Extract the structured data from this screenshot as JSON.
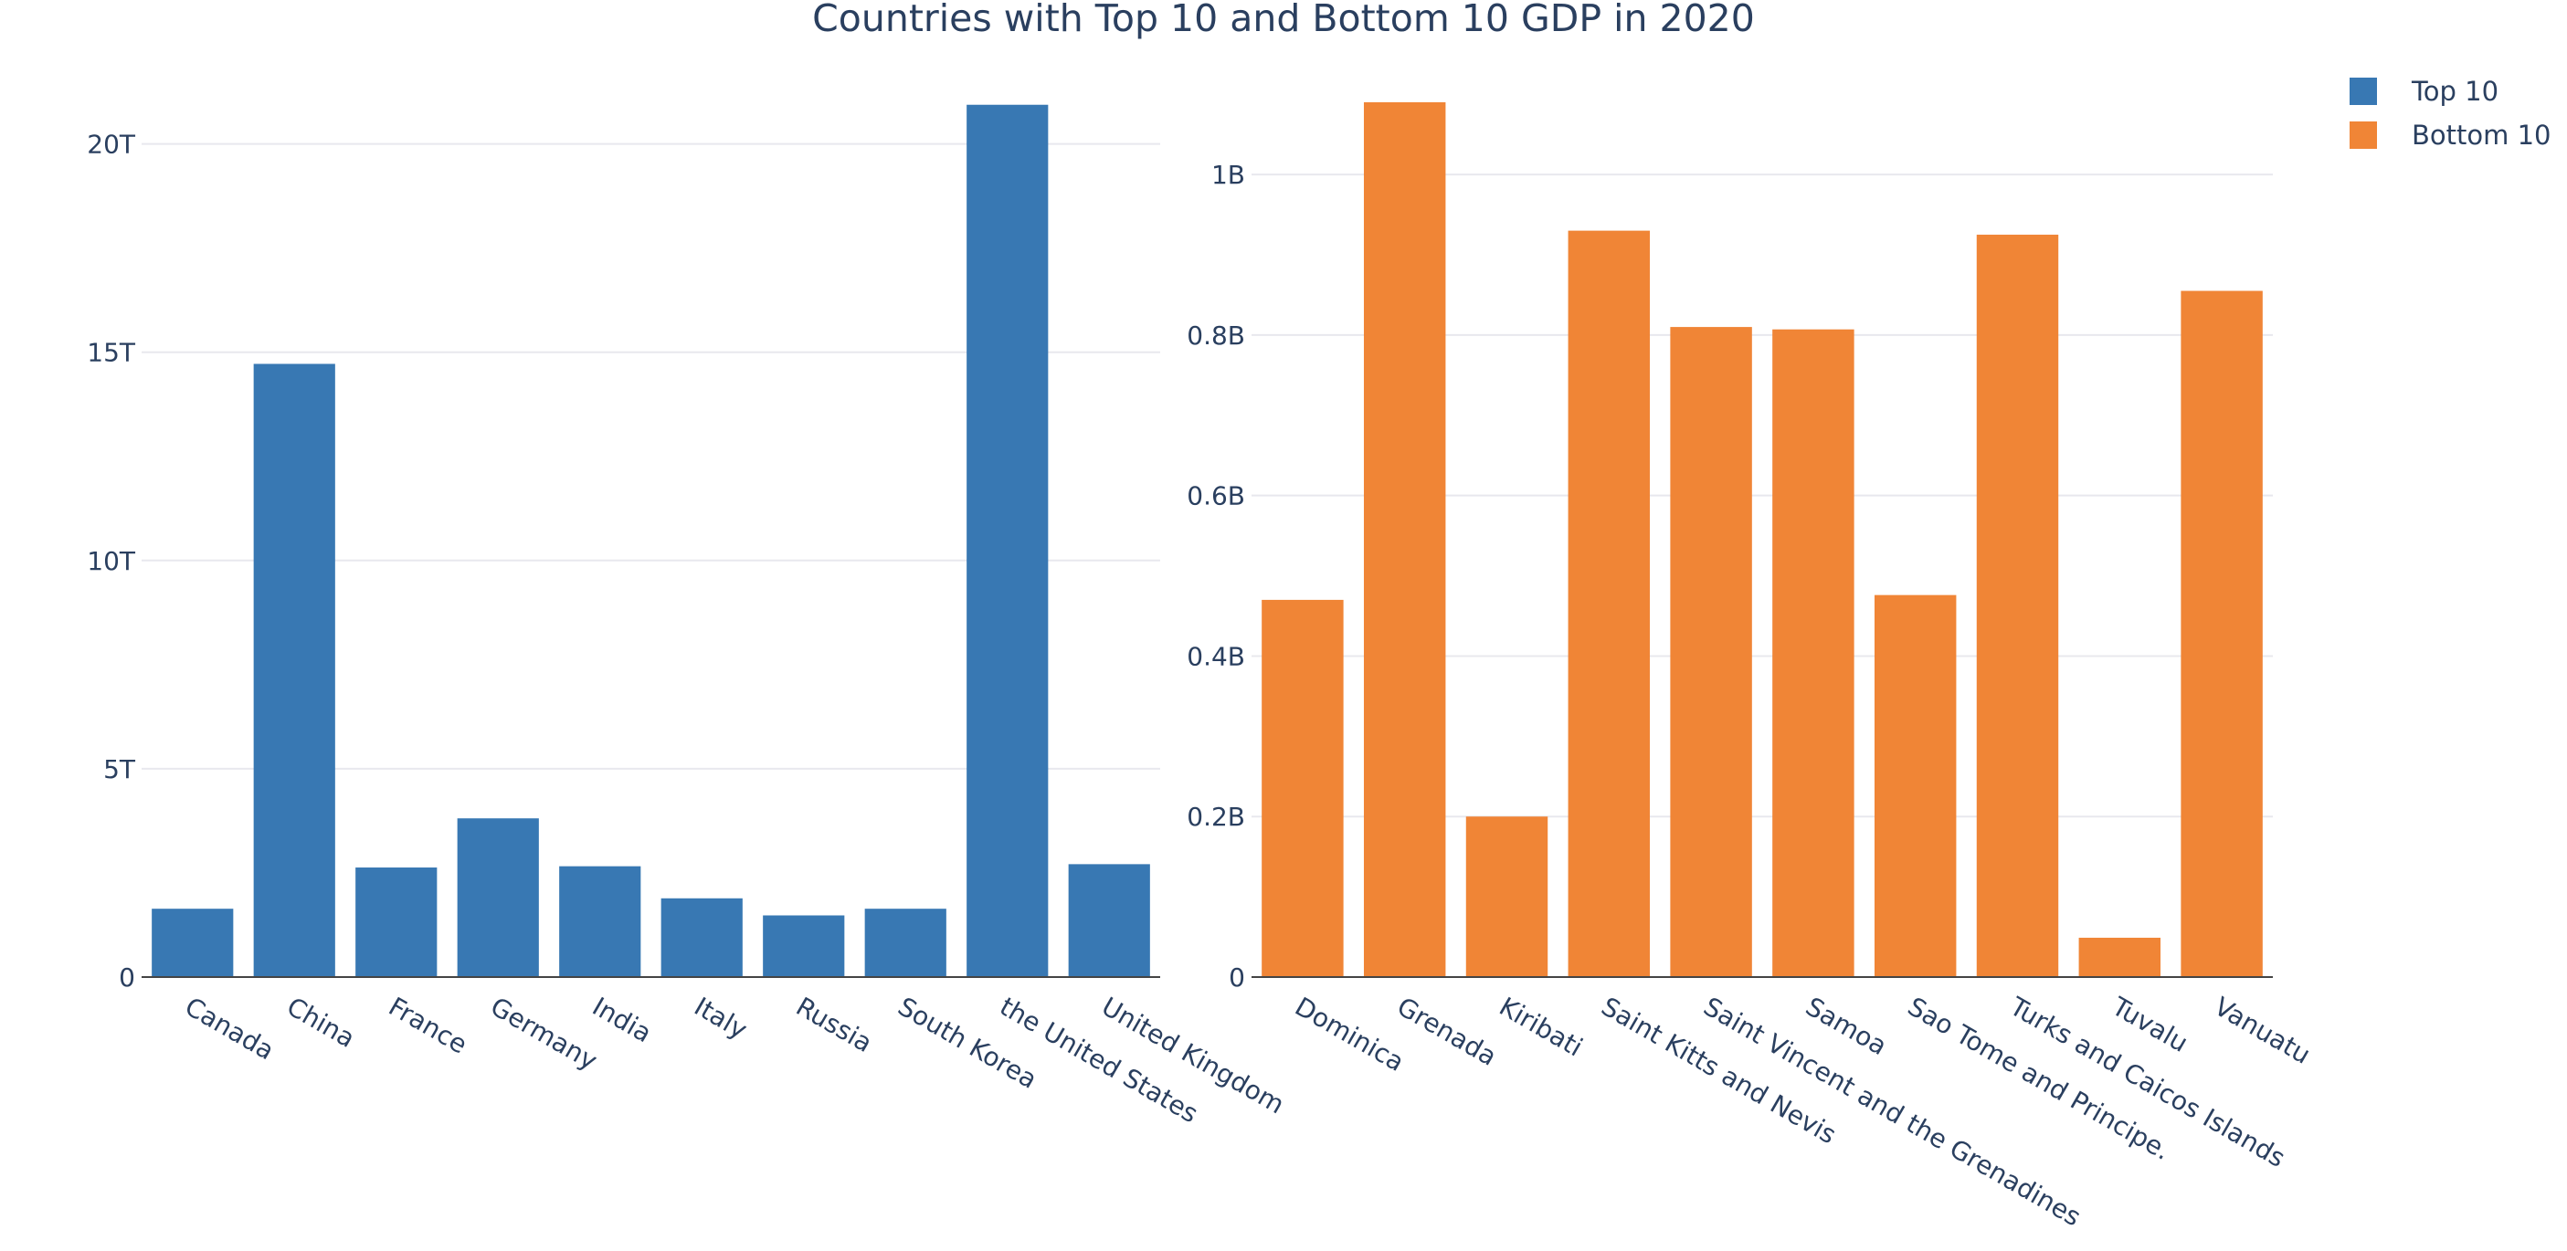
{
  "title": "Countries with Top 10 and Bottom 10 GDP in 2020",
  "legend": [
    {
      "name": "Top 10",
      "color": "#3878b3"
    },
    {
      "name": "Bottom 10",
      "color": "#f08536"
    }
  ],
  "chart_data": [
    {
      "type": "bar",
      "series_name": "Top 10",
      "color": "#3878b3",
      "categories": [
        "Canada",
        "China",
        "France",
        "Germany",
        "India",
        "Italy",
        "Russia",
        "South Korea",
        "the United States",
        "United Kingdom"
      ],
      "values": [
        1640000000000.0,
        14720000000000.0,
        2630000000000.0,
        3810000000000.0,
        2660000000000.0,
        1890000000000.0,
        1480000000000.0,
        1640000000000.0,
        20940000000000.0,
        2710000000000.0
      ],
      "ylim": [
        0,
        21000000000000.0
      ],
      "yticks": [
        0,
        5000000000000.0,
        10000000000000.0,
        15000000000000.0,
        20000000000000.0
      ],
      "ytick_labels": [
        "0",
        "5T",
        "10T",
        "15T",
        "20T"
      ],
      "grid": true
    },
    {
      "type": "bar",
      "series_name": "Bottom 10",
      "color": "#f08536",
      "categories": [
        "Dominica",
        "Grenada",
        "Kiribati",
        "Saint Kitts and Nevis",
        "Saint Vincent and the Grenadines",
        "Samoa",
        "Sao Tome and Principe.",
        "Turks and Caicos Islands",
        "Tuvalu",
        "Vanuatu"
      ],
      "values": [
        470000000.0,
        1090000000.0,
        200000000.0,
        930000000.0,
        810000000.0,
        807000000.0,
        476000000.0,
        925000000.0,
        49000000.0,
        855000000.0
      ],
      "ylim": [
        0,
        1090000000.0
      ],
      "yticks": [
        0,
        200000000.0,
        400000000.0,
        600000000.0,
        800000000.0,
        1000000000.0
      ],
      "ytick_labels": [
        "0",
        "0.2B",
        "0.4B",
        "0.6B",
        "0.8B",
        "1B"
      ],
      "grid": true
    }
  ]
}
